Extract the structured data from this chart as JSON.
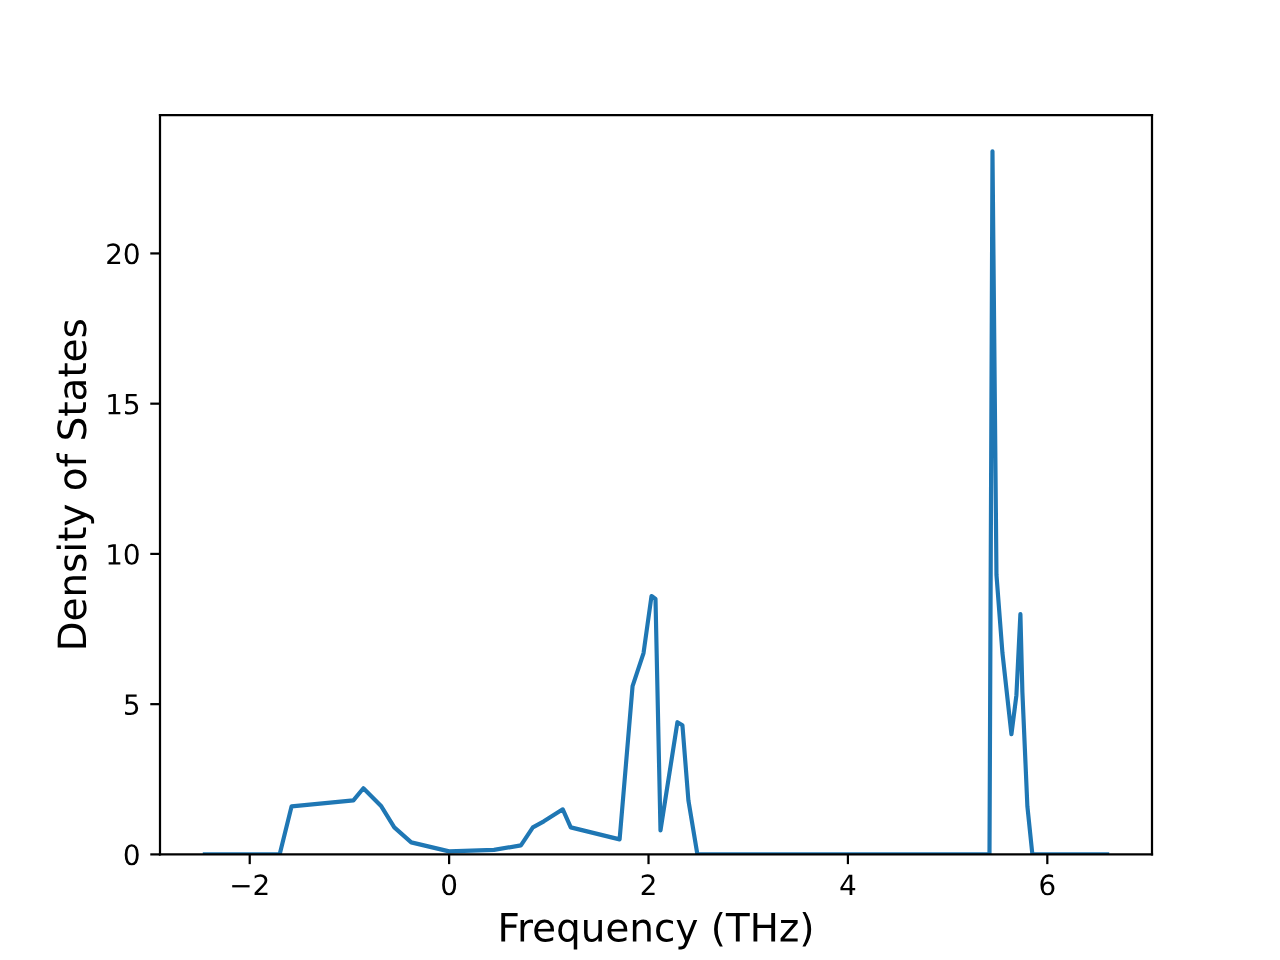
{
  "chart_data": {
    "type": "line",
    "xlabel": "Frequency (THz)",
    "ylabel": "Density of States",
    "x": [
      -2.45,
      -1.7,
      -1.58,
      -0.96,
      -0.86,
      -0.68,
      -0.55,
      -0.38,
      0.0,
      0.45,
      0.72,
      0.84,
      0.95,
      1.14,
      1.22,
      1.71,
      1.84,
      1.95,
      2.03,
      2.07,
      2.12,
      2.29,
      2.34,
      2.4,
      2.49,
      5.42,
      5.45,
      5.49,
      5.55,
      5.64,
      5.69,
      5.73,
      5.75,
      5.8,
      5.85,
      6.6
    ],
    "series": [
      {
        "color": "#1f77b4",
        "values": [
          0,
          0,
          1.6,
          1.8,
          2.2,
          1.6,
          0.9,
          0.4,
          0.1,
          0.15,
          0.3,
          0.9,
          1.1,
          1.5,
          0.9,
          0.5,
          5.6,
          6.7,
          8.6,
          8.5,
          0.8,
          4.4,
          4.3,
          1.8,
          0,
          0,
          23.4,
          9.3,
          6.7,
          4.0,
          5.3,
          8.0,
          5.4,
          1.6,
          0,
          0
        ]
      }
    ],
    "xlim": [
      -2.9,
      7.05
    ],
    "ylim": [
      0,
      24.6
    ],
    "xticks": [
      -2,
      0,
      2,
      4,
      6
    ],
    "yticks": [
      0,
      5,
      10,
      15,
      20
    ],
    "grid": false,
    "marker": "none",
    "line_style": "solid"
  }
}
